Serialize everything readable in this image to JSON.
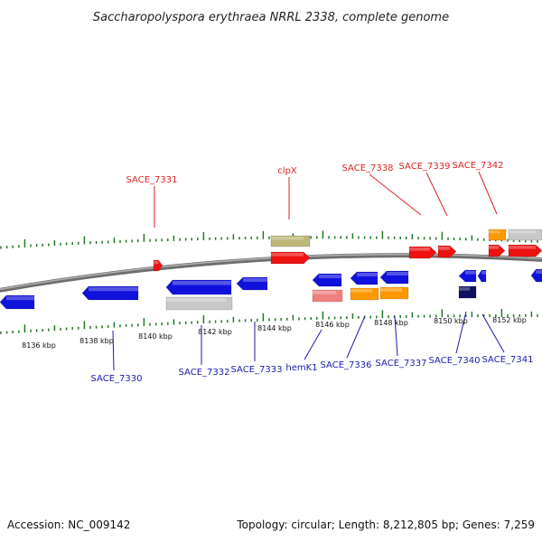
{
  "title": "Saccharopolyspora erythraea NRRL 2338, complete genome",
  "footer": {
    "accession": "Accession: NC_009142",
    "summary": "Topology: circular; Length: 8,212,805 bp; Genes: 7,259"
  },
  "colors": {
    "forward_gene": "#ee1111",
    "reverse_gene": "#1111dd",
    "tick": "#227722",
    "backbone": "#888888",
    "forward_label": "#dd2222",
    "reverse_label": "#1a1ab0",
    "olive": "#bdb878",
    "grey": "#c8c8c8",
    "orange": "#ff9900",
    "pink": "#f08080",
    "navy": "#101060"
  },
  "tick_labels": [
    "8136 kbp",
    "8138 kbp",
    "8140 kbp",
    "8142 kbp",
    "8144 kbp",
    "8146 kbp",
    "8148 kbp",
    "8150 kbp",
    "8152 kbp"
  ],
  "gene_labels": {
    "forward": [
      "SACE_7331",
      "clpX",
      "SACE_7338",
      "SACE_7339",
      "SACE_7342"
    ],
    "reverse": [
      "SACE_7330",
      "SACE_7332",
      "SACE_7333",
      "hemK1",
      "SACE_7336",
      "SACE_7337",
      "SACE_7340",
      "SACE_7341"
    ]
  }
}
